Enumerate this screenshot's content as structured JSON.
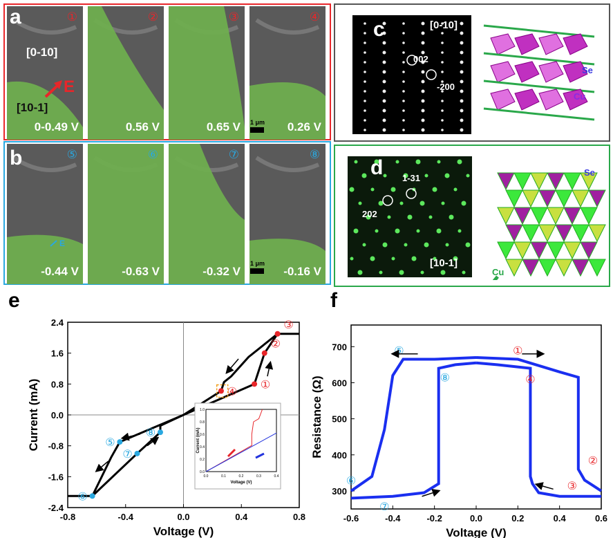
{
  "panel_a": {
    "letter": "a",
    "border_color": "#e8262a",
    "tiles": [
      {
        "num": "①",
        "voltage": "0-0.49 V"
      },
      {
        "num": "②",
        "voltage": "0.56 V"
      },
      {
        "num": "③",
        "voltage": "0.65 V"
      },
      {
        "num": "④",
        "voltage": "0.26 V"
      }
    ],
    "dir1": "[0-10]",
    "dir2": "[10-1]",
    "field": "E",
    "scale": "1 μm"
  },
  "panel_b": {
    "letter": "b",
    "border_color": "#29a8e0",
    "tiles": [
      {
        "num": "⑤",
        "voltage": "-0.44 V"
      },
      {
        "num": "⑥",
        "voltage": "-0.63 V"
      },
      {
        "num": "⑦",
        "voltage": "-0.32 V"
      },
      {
        "num": "⑧",
        "voltage": "-0.16 V"
      }
    ],
    "field": "E",
    "scale": "1 μm"
  },
  "panel_c": {
    "letter": "c",
    "zone": "[0-10]",
    "spot1": "002",
    "spot2": "-200",
    "atom1": "Se",
    "atom2": "Cu",
    "border_color": "#555555"
  },
  "panel_d": {
    "letter": "d",
    "zone": "[10-1]",
    "spot1": "1-31",
    "spot2": "202",
    "atom1": "Se",
    "atom2": "Cu",
    "border_color": "#2aa84a"
  },
  "chart_data": [
    {
      "panel": "e",
      "type": "line",
      "xlabel": "Voltage (V)",
      "ylabel": "Current (mA)",
      "xlim": [
        -0.8,
        0.8
      ],
      "ylim": [
        -2.4,
        2.4
      ],
      "xticks": [
        "-0.8",
        "-0.4",
        "0.0",
        "0.4",
        "0.8"
      ],
      "yticks": [
        "-2.4",
        "-1.6",
        "-0.8",
        "0.0",
        "0.8",
        "1.6",
        "2.4"
      ],
      "series": [
        {
          "x": [
            0,
            0.49,
            0.56,
            0.65,
            0.8
          ],
          "y": [
            0,
            0.8,
            1.6,
            2.1,
            2.1
          ]
        },
        {
          "x": [
            0.65,
            0.45,
            0.33,
            0.28,
            0.26,
            0
          ],
          "y": [
            2.1,
            1.5,
            1.0,
            0.85,
            0.62,
            0
          ]
        },
        {
          "x": [
            0,
            -0.44,
            -0.5,
            -0.63,
            -0.8
          ],
          "y": [
            0,
            -0.7,
            -1.1,
            -2.1,
            -2.1
          ]
        },
        {
          "x": [
            -0.63,
            -0.32,
            -0.16,
            -0.16,
            0
          ],
          "y": [
            -2.1,
            -1.0,
            -0.45,
            -0.28,
            0
          ]
        }
      ],
      "markers": [
        {
          "label": "①",
          "x": 0.49,
          "y": 0.8,
          "color": "#e8262a"
        },
        {
          "label": "②",
          "x": 0.56,
          "y": 1.6,
          "color": "#e8262a"
        },
        {
          "label": "③",
          "x": 0.65,
          "y": 2.1,
          "color": "#e8262a"
        },
        {
          "label": "④",
          "x": 0.26,
          "y": 0.62,
          "color": "#e8262a"
        },
        {
          "label": "⑤",
          "x": -0.44,
          "y": -0.7,
          "color": "#29a8e0"
        },
        {
          "label": "⑥",
          "x": -0.63,
          "y": -2.1,
          "color": "#29a8e0"
        },
        {
          "label": "⑦",
          "x": -0.32,
          "y": -1.0,
          "color": "#29a8e0"
        },
        {
          "label": "⑧",
          "x": -0.16,
          "y": -0.45,
          "color": "#29a8e0"
        }
      ],
      "inset": {
        "xlabel": "Voltage (V)",
        "ylabel": "Current (mA)",
        "xlim": [
          0,
          0.4
        ],
        "ylim": [
          0,
          1.0
        ],
        "xticks": [
          "0.0",
          "0.1",
          "0.2",
          "0.3",
          "0.4"
        ],
        "yticks": [
          "0.0",
          "0.2",
          "0.4",
          "0.6",
          "0.8",
          "1.0"
        ],
        "series": [
          {
            "color": "#e8262a",
            "x": [
              0,
              0.26,
              0.26,
              0.27,
              0.3,
              0.32
            ],
            "y": [
              0,
              0.42,
              0.6,
              0.8,
              0.85,
              1.0
            ]
          },
          {
            "color": "#2233dd",
            "x": [
              0,
              0.4
            ],
            "y": [
              0,
              0.62
            ]
          }
        ]
      }
    },
    {
      "panel": "f",
      "type": "line",
      "xlabel": "Voltage (V)",
      "ylabel": "Resistance (Ω)",
      "xlim": [
        -0.6,
        0.6
      ],
      "ylim": [
        250,
        760
      ],
      "color": "#1a2ff0",
      "xticks": [
        "-0.6",
        "-0.4",
        "-0.2",
        "0.0",
        "0.2",
        "0.4",
        "0.6"
      ],
      "yticks": [
        "300",
        "400",
        "500",
        "600",
        "700"
      ],
      "series": [
        {
          "x": [
            0,
            0.2,
            0.4,
            0.49,
            0.49,
            0.52,
            0.56,
            0.6
          ],
          "y": [
            670,
            665,
            630,
            615,
            360,
            330,
            315,
            300
          ]
        },
        {
          "x": [
            0.6,
            0.4,
            0.3,
            0.27,
            0.26,
            0.26,
            0.1,
            0
          ],
          "y": [
            285,
            285,
            295,
            320,
            340,
            640,
            650,
            655
          ]
        },
        {
          "x": [
            0,
            -0.2,
            -0.35,
            -0.4,
            -0.44,
            -0.5,
            -0.6
          ],
          "y": [
            670,
            665,
            665,
            620,
            470,
            340,
            300
          ]
        },
        {
          "x": [
            -0.6,
            -0.4,
            -0.25,
            -0.18,
            -0.18,
            -0.1,
            0
          ],
          "y": [
            280,
            285,
            295,
            320,
            640,
            650,
            655
          ]
        }
      ],
      "markers": [
        {
          "label": "①",
          "x": 0.2,
          "y": 690,
          "color": "#e8262a"
        },
        {
          "label": "②",
          "x": 0.56,
          "y": 385,
          "color": "#e8262a"
        },
        {
          "label": "③",
          "x": 0.46,
          "y": 315,
          "color": "#e8262a"
        },
        {
          "label": "④",
          "x": 0.26,
          "y": 610,
          "color": "#e8262a"
        },
        {
          "label": "⑤",
          "x": -0.37,
          "y": 690,
          "color": "#29a8e0"
        },
        {
          "label": "⑥",
          "x": -0.6,
          "y": 330,
          "color": "#29a8e0"
        },
        {
          "label": "⑦",
          "x": -0.44,
          "y": 258,
          "color": "#29a8e0"
        },
        {
          "label": "⑧",
          "x": -0.15,
          "y": 615,
          "color": "#29a8e0"
        }
      ]
    }
  ],
  "panel_e_letter": "e",
  "panel_f_letter": "f"
}
